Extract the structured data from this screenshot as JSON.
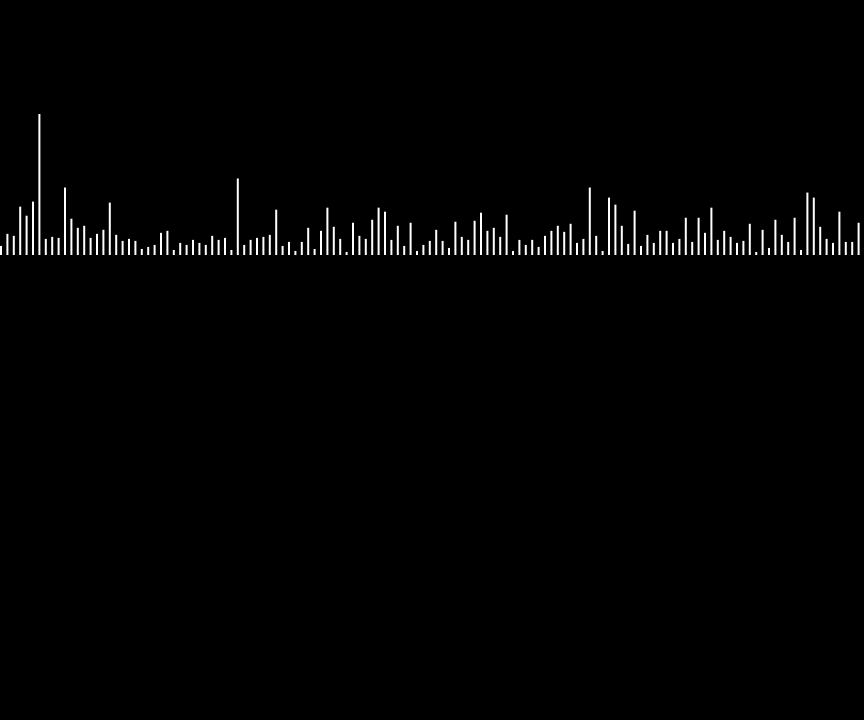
{
  "chart_data": {
    "type": "bar",
    "bar_color": "#ffffff",
    "background_color": "#000000",
    "grid": false,
    "legend": "none",
    "ylim": [
      0,
      140
    ],
    "values": [
      9,
      21,
      19,
      48,
      39,
      53,
      140,
      16,
      18,
      17,
      67,
      36,
      27,
      29,
      17,
      21,
      25,
      52,
      20,
      14,
      16,
      14,
      6,
      8,
      10,
      22,
      24,
      5,
      12,
      10,
      15,
      12,
      10,
      19,
      15,
      17,
      5,
      76,
      10,
      15,
      17,
      18,
      20,
      45,
      9,
      13,
      4,
      13,
      27,
      6,
      24,
      47,
      28,
      16,
      3,
      32,
      19,
      16,
      35,
      47,
      43,
      15,
      29,
      9,
      32,
      4,
      10,
      14,
      25,
      14,
      7,
      33,
      18,
      15,
      34,
      42,
      24,
      27,
      18,
      40,
      4,
      15,
      10,
      15,
      8,
      19,
      24,
      29,
      23,
      31,
      12,
      16,
      67,
      19,
      4,
      57,
      50,
      29,
      11,
      44,
      9,
      20,
      12,
      24,
      24,
      12,
      16,
      37,
      13,
      37,
      22,
      47,
      15,
      24,
      18,
      12,
      14,
      31,
      3,
      25,
      7,
      35,
      20,
      13,
      37,
      5,
      62,
      57,
      28,
      16,
      12,
      43,
      13,
      13,
      32
    ]
  }
}
